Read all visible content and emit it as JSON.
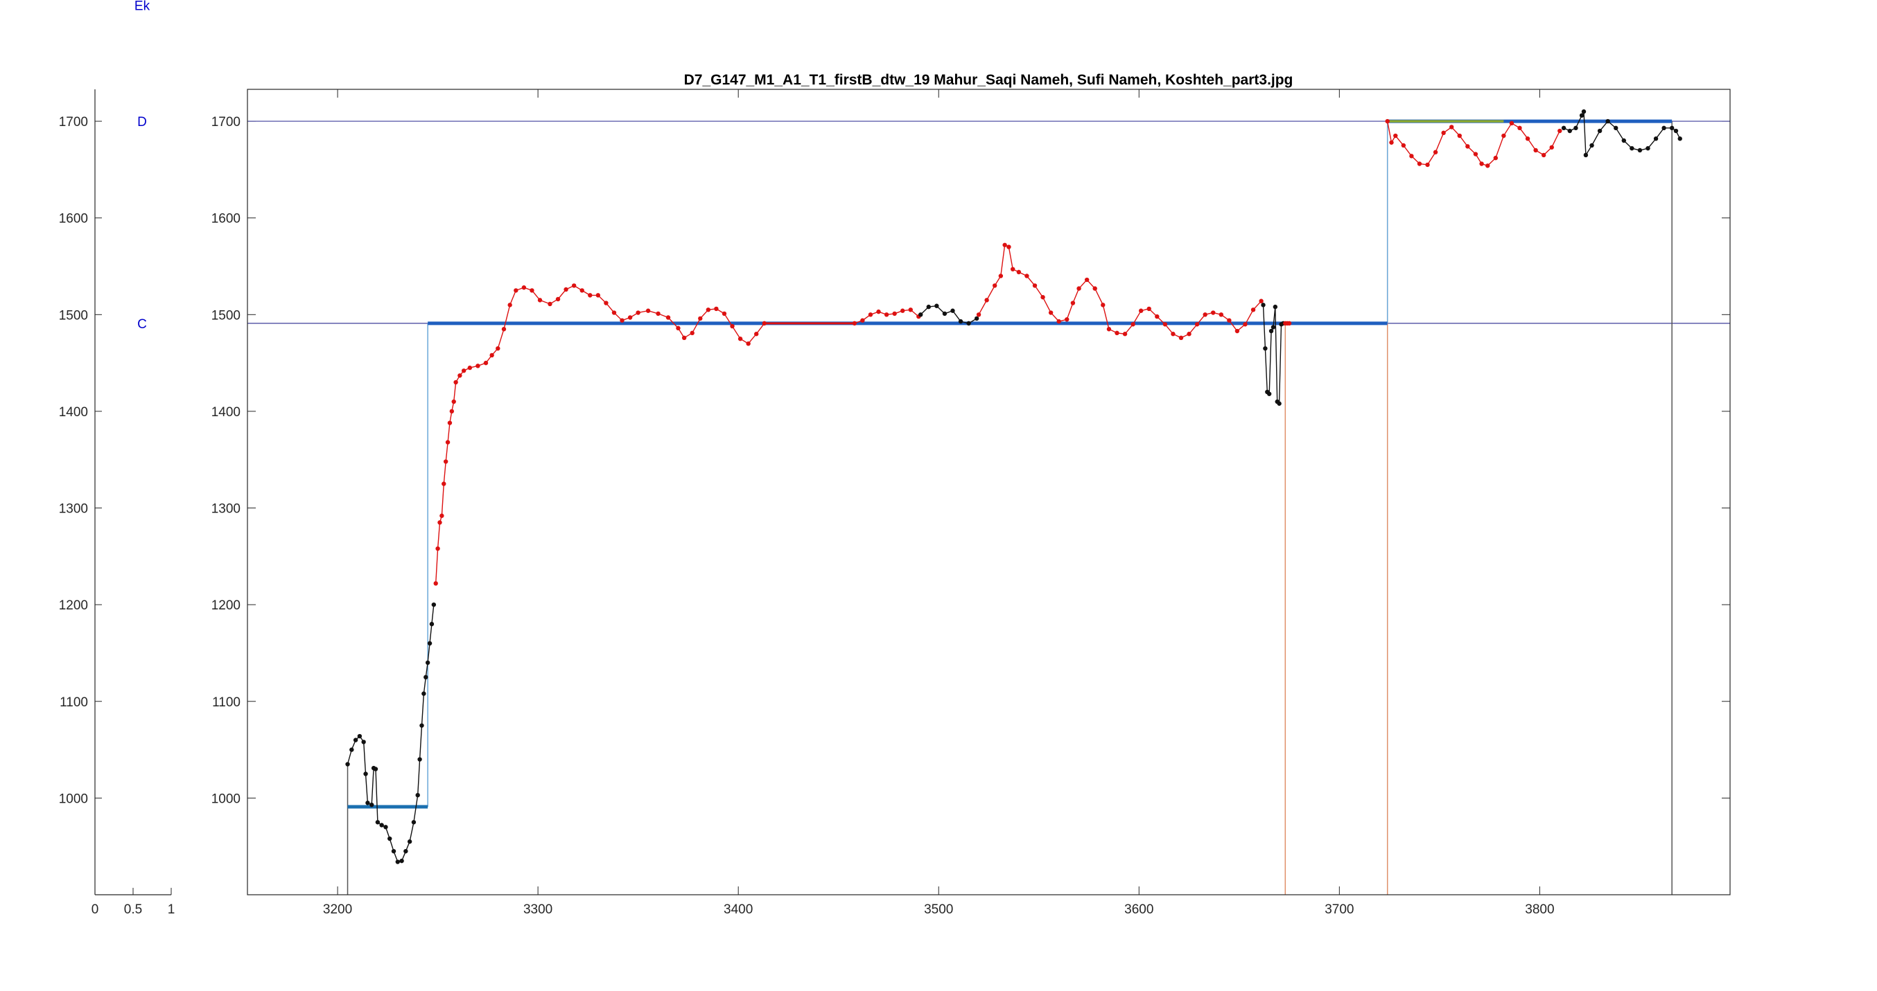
{
  "figure": {
    "title": "D7_G147_M1_A1_T1_firstB_dtw_19 Mahur_Saqi Nameh, Sufi Nameh, Koshteh_part3.jpg"
  },
  "colors": {
    "axis": "#262626",
    "note_label": "#0000cc",
    "reference_line": "#3c3c9a",
    "segment_bar": "#1f5fbf",
    "segment_bar_first": "#1a6fb0",
    "connector": "#6aa8d8",
    "red_points": "#dd1111",
    "black_points": "#111111",
    "green_segment": "#8aa832",
    "orange_marker": "#e0906a",
    "grey_marker": "#555555"
  },
  "side_axis": {
    "x_ticks": [
      "0",
      "0.5",
      "1"
    ],
    "y_ticks": [
      "1000",
      "1100",
      "1200",
      "1300",
      "1400",
      "1500",
      "1600",
      "1700"
    ],
    "note_labels": [
      {
        "label": "Ek",
        "y": 1820
      },
      {
        "label": "D",
        "y": 1700
      },
      {
        "label": "C",
        "y": 1491
      }
    ]
  },
  "chart_data": {
    "type": "line",
    "title": "D7_G147_M1_A1_T1_firstB_dtw_19 Mahur_Saqi Nameh, Sufi Nameh, Koshteh_part3.jpg",
    "xlabel": "",
    "ylabel": "",
    "xlim": [
      3155,
      3895
    ],
    "ylim": [
      900,
      1733
    ],
    "grid": false,
    "x_ticks": [
      3200,
      3300,
      3400,
      3500,
      3600,
      3700,
      3800
    ],
    "y_ticks": [
      1000,
      1100,
      1200,
      1300,
      1400,
      1500,
      1600,
      1700
    ],
    "reference_lines": [
      1700,
      1491
    ],
    "segments": [
      {
        "x0": 3205,
        "x1": 3245,
        "y": 991
      },
      {
        "x0": 3245,
        "x1": 3724,
        "y": 1491
      },
      {
        "x0": 3724,
        "x1": 3866,
        "y": 1700
      }
    ],
    "green_segment": {
      "x0": 3724,
      "x1": 3782,
      "y": 1700
    },
    "red_flat_segment": {
      "x0": 3413,
      "x1": 3458,
      "y": 1491
    },
    "vertical_markers": [
      {
        "x": 3205,
        "y0": 900,
        "y1": 1035,
        "color_key": "grey_marker"
      },
      {
        "x": 3245,
        "y0": 991,
        "y1": 1491,
        "color_key": "connector"
      },
      {
        "x": 3673,
        "y0": 900,
        "y1": 1491,
        "color_key": "orange_marker"
      },
      {
        "x": 3724,
        "y0": 900,
        "y1": 1700,
        "color_key": "orange_marker"
      },
      {
        "x": 3724,
        "y0": 1491,
        "y1": 1700,
        "color_key": "connector"
      },
      {
        "x": 3866,
        "y0": 900,
        "y1": 1700,
        "color_key": "grey_marker"
      }
    ],
    "series": [
      {
        "color_key": "black_points",
        "points": [
          [
            3205,
            1035
          ],
          [
            3207,
            1050
          ],
          [
            3209,
            1060
          ],
          [
            3211,
            1064
          ],
          [
            3213,
            1058
          ],
          [
            3214,
            1025
          ],
          [
            3215,
            995
          ],
          [
            3217,
            993
          ],
          [
            3218,
            1031
          ],
          [
            3219,
            1030
          ],
          [
            3220,
            975
          ],
          [
            3222,
            972
          ],
          [
            3224,
            970
          ],
          [
            3226,
            958
          ],
          [
            3228,
            945
          ],
          [
            3230,
            934
          ],
          [
            3232,
            935
          ],
          [
            3234,
            945
          ],
          [
            3236,
            955
          ],
          [
            3238,
            975
          ],
          [
            3240,
            1003
          ],
          [
            3241,
            1040
          ],
          [
            3242,
            1075
          ],
          [
            3243,
            1108
          ],
          [
            3244,
            1125
          ],
          [
            3245,
            1140
          ],
          [
            3246,
            1160
          ],
          [
            3247,
            1180
          ],
          [
            3248,
            1200
          ]
        ]
      },
      {
        "color_key": "red_points",
        "points": [
          [
            3249,
            1222
          ],
          [
            3250,
            1258
          ],
          [
            3251,
            1285
          ],
          [
            3252,
            1292
          ],
          [
            3253,
            1325
          ],
          [
            3254,
            1348
          ],
          [
            3255,
            1368
          ],
          [
            3256,
            1388
          ],
          [
            3257,
            1400
          ],
          [
            3258,
            1410
          ],
          [
            3259,
            1430
          ],
          [
            3261,
            1437
          ],
          [
            3263,
            1442
          ],
          [
            3266,
            1445
          ],
          [
            3270,
            1447
          ],
          [
            3274,
            1450
          ],
          [
            3277,
            1458
          ],
          [
            3280,
            1465
          ],
          [
            3283,
            1485
          ],
          [
            3286,
            1510
          ],
          [
            3289,
            1525
          ],
          [
            3293,
            1528
          ],
          [
            3297,
            1525
          ],
          [
            3301,
            1515
          ],
          [
            3306,
            1511
          ],
          [
            3310,
            1516
          ],
          [
            3314,
            1526
          ],
          [
            3318,
            1530
          ],
          [
            3322,
            1525
          ],
          [
            3326,
            1520
          ],
          [
            3330,
            1520
          ],
          [
            3334,
            1512
          ],
          [
            3338,
            1502
          ],
          [
            3342,
            1494
          ],
          [
            3346,
            1497
          ],
          [
            3350,
            1502
          ],
          [
            3355,
            1504
          ],
          [
            3360,
            1501
          ],
          [
            3365,
            1497
          ],
          [
            3370,
            1486
          ],
          [
            3373,
            1476
          ],
          [
            3377,
            1481
          ],
          [
            3381,
            1496
          ],
          [
            3385,
            1505
          ],
          [
            3389,
            1506
          ],
          [
            3393,
            1501
          ],
          [
            3397,
            1488
          ],
          [
            3401,
            1475
          ],
          [
            3405,
            1470
          ],
          [
            3409,
            1480
          ],
          [
            3413,
            1491
          ]
        ]
      },
      {
        "color_key": "red_points",
        "points": [
          [
            3458,
            1491
          ],
          [
            3462,
            1494
          ],
          [
            3466,
            1500
          ],
          [
            3470,
            1503
          ],
          [
            3474,
            1500
          ],
          [
            3478,
            1501
          ],
          [
            3482,
            1504
          ],
          [
            3486,
            1505
          ],
          [
            3490,
            1498
          ]
        ]
      },
      {
        "color_key": "black_points",
        "points": [
          [
            3491,
            1500
          ],
          [
            3495,
            1508
          ],
          [
            3499,
            1509
          ],
          [
            3503,
            1501
          ],
          [
            3507,
            1504
          ],
          [
            3511,
            1493
          ],
          [
            3515,
            1491
          ],
          [
            3519,
            1496
          ]
        ]
      },
      {
        "color_key": "red_points",
        "points": [
          [
            3520,
            1500
          ],
          [
            3524,
            1515
          ],
          [
            3528,
            1530
          ],
          [
            3531,
            1540
          ],
          [
            3533,
            1572
          ],
          [
            3535,
            1570
          ],
          [
            3537,
            1547
          ],
          [
            3540,
            1544
          ],
          [
            3544,
            1540
          ],
          [
            3548,
            1530
          ],
          [
            3552,
            1518
          ],
          [
            3556,
            1502
          ],
          [
            3560,
            1493
          ],
          [
            3564,
            1495
          ],
          [
            3567,
            1512
          ],
          [
            3570,
            1527
          ],
          [
            3574,
            1536
          ],
          [
            3578,
            1527
          ],
          [
            3582,
            1510
          ],
          [
            3585,
            1485
          ],
          [
            3589,
            1481
          ],
          [
            3593,
            1480
          ],
          [
            3597,
            1490
          ],
          [
            3601,
            1504
          ],
          [
            3605,
            1506
          ],
          [
            3609,
            1498
          ],
          [
            3613,
            1490
          ],
          [
            3617,
            1480
          ],
          [
            3621,
            1476
          ],
          [
            3625,
            1480
          ],
          [
            3629,
            1490
          ],
          [
            3633,
            1500
          ],
          [
            3637,
            1502
          ],
          [
            3641,
            1500
          ],
          [
            3645,
            1494
          ],
          [
            3649,
            1483
          ],
          [
            3653,
            1490
          ],
          [
            3657,
            1505
          ],
          [
            3661,
            1514
          ]
        ]
      },
      {
        "color_key": "black_points",
        "points": [
          [
            3662,
            1510
          ],
          [
            3663,
            1465
          ],
          [
            3664,
            1420
          ],
          [
            3665,
            1418
          ],
          [
            3666,
            1483
          ],
          [
            3667,
            1487
          ],
          [
            3668,
            1508
          ],
          [
            3669,
            1410
          ],
          [
            3670,
            1408
          ],
          [
            3671,
            1490
          ],
          [
            3672,
            1491
          ]
        ]
      },
      {
        "color_key": "red_points",
        "points": [
          [
            3673,
            1491
          ],
          [
            3674,
            1491
          ],
          [
            3675,
            1491
          ]
        ]
      },
      {
        "color_key": "red_points",
        "points": [
          [
            3724,
            1700
          ],
          [
            3726,
            1678
          ],
          [
            3728,
            1685
          ],
          [
            3732,
            1675
          ],
          [
            3736,
            1664
          ],
          [
            3740,
            1656
          ],
          [
            3744,
            1655
          ],
          [
            3748,
            1668
          ],
          [
            3752,
            1688
          ],
          [
            3756,
            1694
          ],
          [
            3760,
            1685
          ],
          [
            3764,
            1674
          ],
          [
            3768,
            1666
          ],
          [
            3771,
            1656
          ],
          [
            3774,
            1654
          ],
          [
            3778,
            1662
          ],
          [
            3782,
            1685
          ],
          [
            3786,
            1698
          ],
          [
            3790,
            1693
          ],
          [
            3794,
            1682
          ],
          [
            3798,
            1670
          ],
          [
            3802,
            1665
          ],
          [
            3806,
            1673
          ],
          [
            3810,
            1690
          ]
        ]
      },
      {
        "color_key": "black_points",
        "points": [
          [
            3812,
            1693
          ],
          [
            3815,
            1690
          ],
          [
            3818,
            1693
          ],
          [
            3821,
            1706
          ],
          [
            3822,
            1710
          ],
          [
            3823,
            1665
          ],
          [
            3826,
            1675
          ],
          [
            3830,
            1690
          ],
          [
            3834,
            1700
          ],
          [
            3838,
            1693
          ],
          [
            3842,
            1680
          ],
          [
            3846,
            1672
          ],
          [
            3850,
            1670
          ],
          [
            3854,
            1672
          ],
          [
            3858,
            1682
          ],
          [
            3862,
            1693
          ],
          [
            3866,
            1693
          ],
          [
            3868,
            1690
          ],
          [
            3870,
            1682
          ]
        ]
      }
    ]
  }
}
